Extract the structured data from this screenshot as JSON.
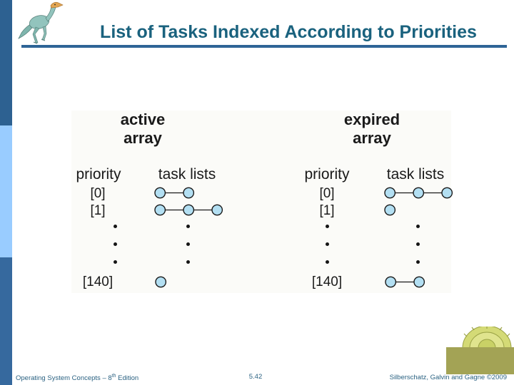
{
  "theme": {
    "title_color": "#1a627e",
    "rule_color": "#2e6496",
    "sidebar_top_color": "#2d6191",
    "sidebar_middle_color": "#99ccff",
    "sidebar_bottom_color": "#36699e",
    "circle_fill": "#b3dff2",
    "circle_stroke": "#1a1a1a",
    "olive_color": "#a3a355",
    "footer_text_color": "#2b6282"
  },
  "header": {
    "title": "List of Tasks Indexed According to Priorities"
  },
  "diagram": {
    "arrays": [
      {
        "title_line1": "active",
        "title_line2": "array",
        "col_priority": "priority",
        "col_tasks": "task lists",
        "rows": [
          {
            "label": "[0]",
            "circles": 2
          },
          {
            "label": "[1]",
            "circles": 3
          },
          {
            "label": "[140]",
            "circles": 1
          }
        ]
      },
      {
        "title_line1": "expired",
        "title_line2": "array",
        "col_priority": "priority",
        "col_tasks": "task lists",
        "rows": [
          {
            "label": "[0]",
            "circles": 3
          },
          {
            "label": "[1]",
            "circles": 1
          },
          {
            "label": "[140]",
            "circles": 2
          }
        ]
      }
    ]
  },
  "footer": {
    "book_prefix": "Operating System Concepts – 8",
    "book_sup": "th",
    "book_suffix": " Edition",
    "page": "5.42",
    "credit": "Silberschatz, Galvin and Gagne ©2009"
  }
}
